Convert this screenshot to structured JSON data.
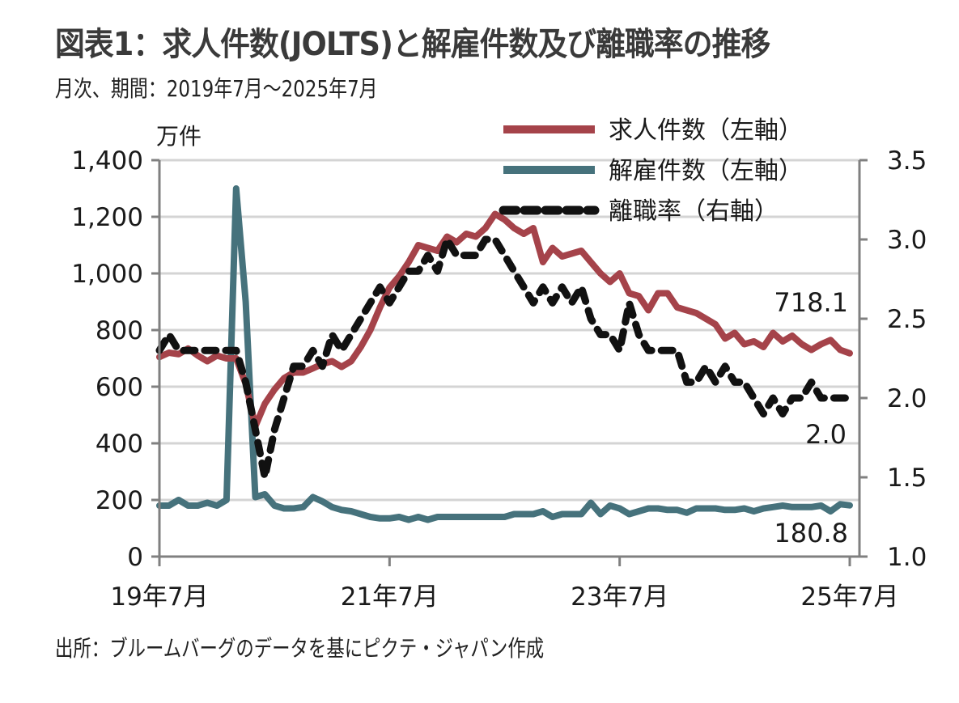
{
  "chart_data": {
    "type": "line",
    "title": "図表1：求人件数(JOLTS)と解雇件数及び離職率の推移",
    "subtitle": "月次、期間：2019年7月～2025年7月",
    "source": "出所：ブルームバーグのデータを基にピクテ・ジャパン作成",
    "y_left_unit": "万件",
    "y_left_range": [
      0,
      1400
    ],
    "y_left_ticks": [
      "0",
      "200",
      "400",
      "600",
      "800",
      "1,000",
      "1,200",
      "1,400"
    ],
    "y_left_tick_values": [
      0,
      200,
      400,
      600,
      800,
      1000,
      1200,
      1400
    ],
    "y_right_range": [
      1.0,
      3.5
    ],
    "y_right_ticks": [
      "1.0",
      "1.5",
      "2.0",
      "2.5",
      "3.0",
      "3.5"
    ],
    "y_right_tick_values": [
      1.0,
      1.5,
      2.0,
      2.5,
      3.0,
      3.5
    ],
    "x_start": "2019-07",
    "x_end": "2025-07",
    "x_tick_labels": [
      "19年7月",
      "21年7月",
      "23年7月",
      "25年7月"
    ],
    "x_tick_index": [
      0,
      24,
      48,
      72
    ],
    "grid": true,
    "legend_placement": "top-right",
    "series": [
      {
        "name": "求人件数（左軸）",
        "axis": "left",
        "color": "#a5434a",
        "style": "solid",
        "values": [
          705,
          720,
          715,
          735,
          710,
          690,
          710,
          700,
          700,
          610,
          460,
          540,
          590,
          630,
          650,
          650,
          665,
          680,
          690,
          670,
          690,
          740,
          800,
          880,
          950,
          990,
          1040,
          1100,
          1090,
          1080,
          1130,
          1110,
          1140,
          1130,
          1160,
          1210,
          1190,
          1160,
          1140,
          1160,
          1040,
          1090,
          1060,
          1070,
          1080,
          1040,
          1000,
          970,
          1000,
          930,
          920,
          870,
          930,
          930,
          880,
          870,
          860,
          840,
          820,
          770,
          790,
          750,
          760,
          740,
          790,
          760,
          780,
          750,
          730,
          750,
          765,
          730,
          718.1
        ]
      },
      {
        "name": "解雇件数（左軸）",
        "axis": "left",
        "color": "#46727c",
        "style": "solid",
        "values": [
          180,
          180,
          200,
          180,
          180,
          190,
          180,
          200,
          1300,
          900,
          210,
          220,
          180,
          170,
          170,
          175,
          210,
          195,
          175,
          165,
          160,
          150,
          140,
          135,
          135,
          140,
          130,
          140,
          130,
          140,
          140,
          140,
          140,
          140,
          140,
          140,
          140,
          150,
          150,
          150,
          160,
          140,
          150,
          150,
          150,
          190,
          150,
          180,
          170,
          150,
          160,
          170,
          170,
          165,
          165,
          155,
          170,
          170,
          170,
          165,
          165,
          170,
          160,
          170,
          175,
          180,
          175,
          175,
          175,
          180,
          160,
          185,
          180.8
        ]
      },
      {
        "name": "離職率（右軸）",
        "axis": "right",
        "color": "#111111",
        "style": "dashed",
        "values": [
          2.3,
          2.4,
          2.3,
          2.3,
          2.3,
          2.3,
          2.3,
          2.3,
          2.3,
          2.1,
          1.8,
          1.5,
          1.8,
          2.0,
          2.2,
          2.2,
          2.3,
          2.2,
          2.4,
          2.3,
          2.4,
          2.5,
          2.6,
          2.7,
          2.6,
          2.7,
          2.8,
          2.8,
          2.9,
          2.8,
          3.0,
          2.9,
          2.9,
          2.9,
          3.0,
          3.0,
          2.9,
          2.8,
          2.7,
          2.6,
          2.7,
          2.6,
          2.7,
          2.6,
          2.7,
          2.5,
          2.4,
          2.4,
          2.3,
          2.6,
          2.4,
          2.3,
          2.3,
          2.3,
          2.3,
          2.1,
          2.1,
          2.2,
          2.1,
          2.2,
          2.1,
          2.1,
          2.0,
          1.9,
          2.0,
          1.9,
          2.0,
          2.0,
          2.1,
          2.0,
          2.0,
          2.0,
          2.0
        ]
      }
    ],
    "annotations": [
      {
        "series": "求人件数（左軸）",
        "text": "718.1"
      },
      {
        "series": "離職率（右軸）",
        "text": "2.0"
      },
      {
        "series": "解雇件数（左軸）",
        "text": "180.8"
      }
    ]
  }
}
